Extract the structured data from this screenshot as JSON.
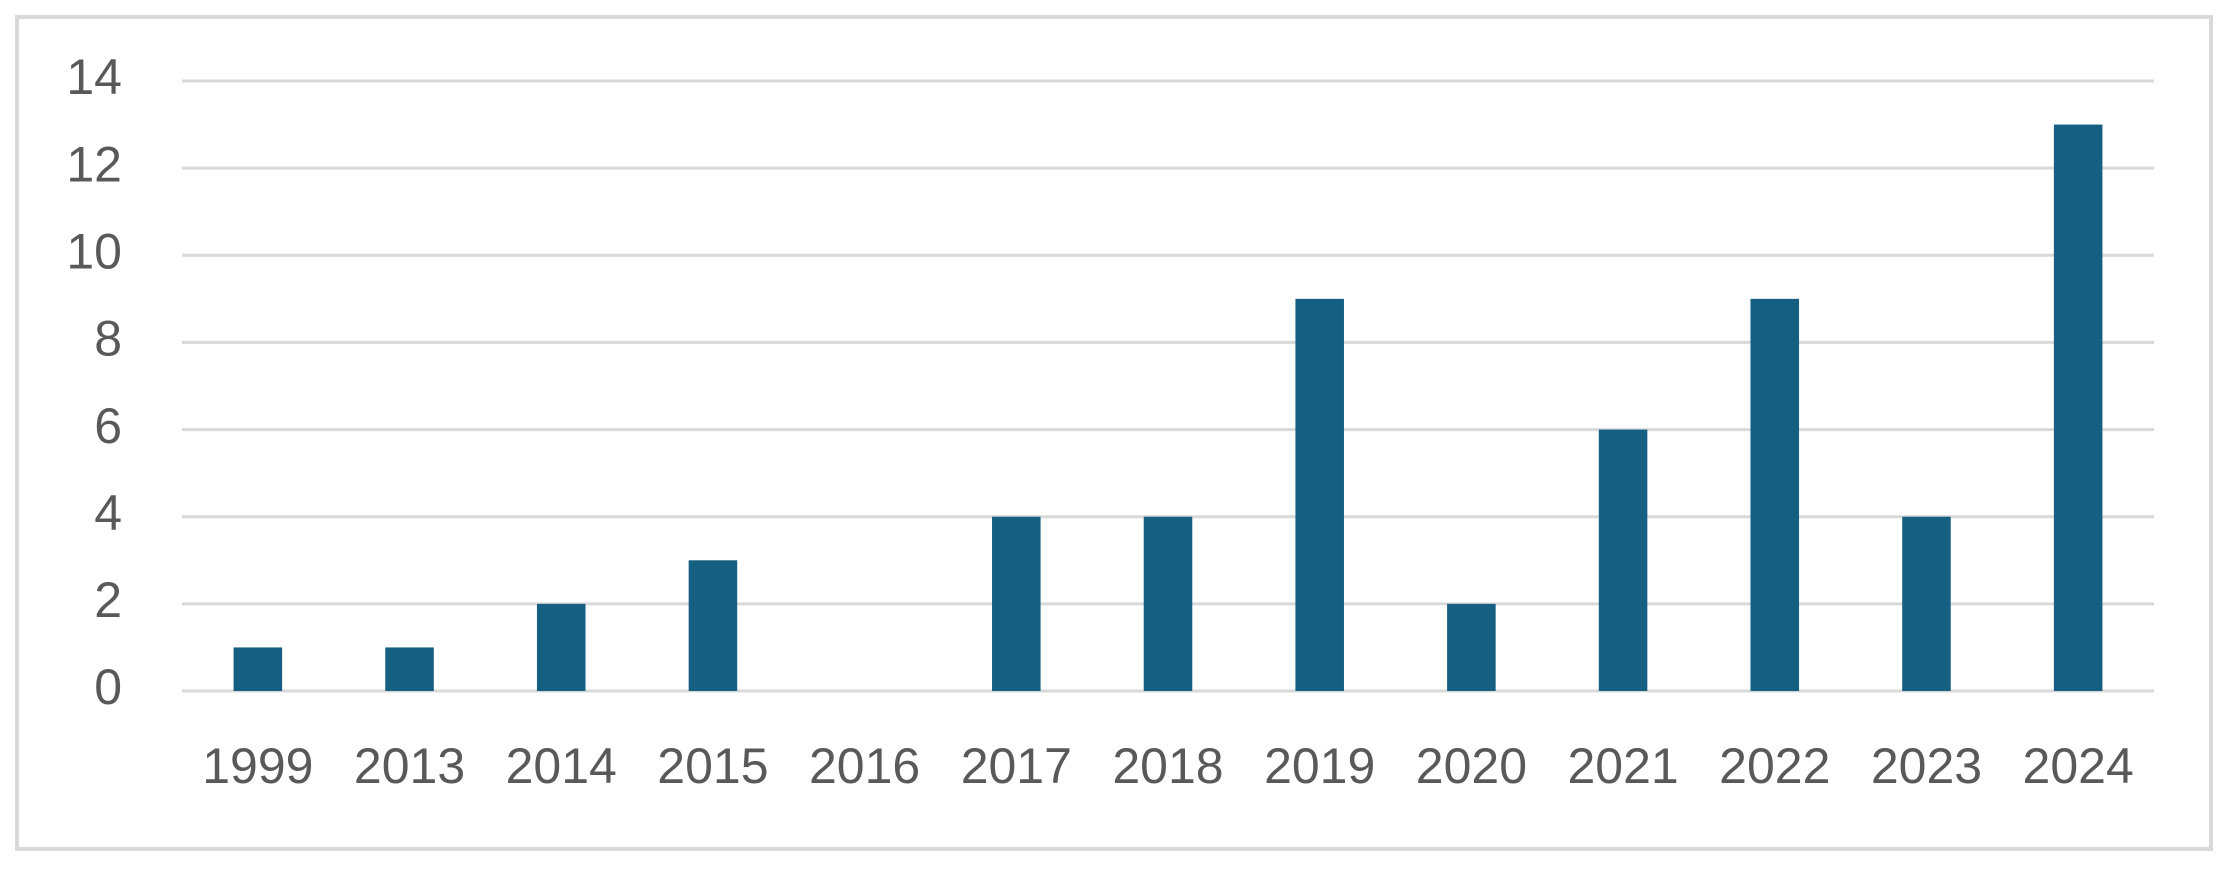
{
  "chart_data": {
    "type": "bar",
    "categories": [
      "1999",
      "2013",
      "2014",
      "2015",
      "2016",
      "2017",
      "2018",
      "2019",
      "2020",
      "2021",
      "2022",
      "2023",
      "2024"
    ],
    "values": [
      1,
      1,
      2,
      3,
      0,
      4,
      4,
      9,
      2,
      6,
      9,
      4,
      13
    ],
    "color": "#155f83",
    "ylim": [
      0,
      14
    ],
    "yticks": [
      0,
      2,
      4,
      6,
      8,
      10,
      12,
      14
    ],
    "grid": true
  }
}
